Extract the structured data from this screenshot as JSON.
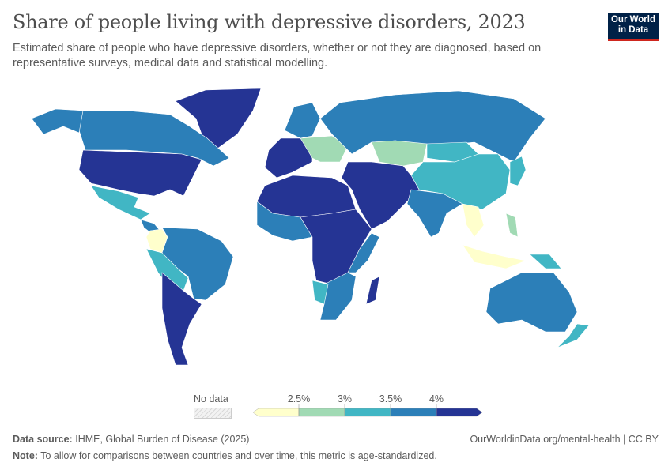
{
  "header": {
    "title": "Share of people living with depressive disorders, 2023",
    "subtitle": "Estimated share of people who have depressive disorders, whether or not they are diagnosed, based on representative surveys, medical data and statistical modelling.",
    "logo": "Our World in Data"
  },
  "legend": {
    "no_data_label": "No data",
    "ticks": [
      "2.5%",
      "3%",
      "3.5%",
      "4%"
    ],
    "bins": [
      {
        "max": 2.5,
        "color": "#ffffcc"
      },
      {
        "min": 2.5,
        "max": 3,
        "color": "#a1dab4"
      },
      {
        "min": 3,
        "max": 3.5,
        "color": "#41b6c4"
      },
      {
        "min": 3.5,
        "max": 4,
        "color": "#2c7fb8"
      },
      {
        "min": 4,
        "color": "#253494"
      }
    ],
    "no_data_color": "#e0e0e0"
  },
  "map": {
    "regions": [
      {
        "name": "greenland",
        "bin": 4
      },
      {
        "name": "canada",
        "bin": 3
      },
      {
        "name": "alaska",
        "bin": 3
      },
      {
        "name": "united-states",
        "bin": 4
      },
      {
        "name": "mexico",
        "bin": 2
      },
      {
        "name": "central-america",
        "bin": 3
      },
      {
        "name": "colombia",
        "bin": 0
      },
      {
        "name": "south-america",
        "bin": 3
      },
      {
        "name": "peru-bolivia",
        "bin": 2
      },
      {
        "name": "argentina-chile",
        "bin": 4
      },
      {
        "name": "western-europe",
        "bin": 4
      },
      {
        "name": "eastern-europe",
        "bin": 1
      },
      {
        "name": "scandinavia",
        "bin": 3
      },
      {
        "name": "russia",
        "bin": 3
      },
      {
        "name": "kazakhstan",
        "bin": 1
      },
      {
        "name": "china",
        "bin": 2
      },
      {
        "name": "mongolia",
        "bin": 2
      },
      {
        "name": "middle-east",
        "bin": 4
      },
      {
        "name": "north-africa",
        "bin": 4
      },
      {
        "name": "west-africa",
        "bin": 3
      },
      {
        "name": "central-africa",
        "bin": 4
      },
      {
        "name": "east-africa",
        "bin": 3
      },
      {
        "name": "southern-africa",
        "bin": 3
      },
      {
        "name": "namibia",
        "bin": 2
      },
      {
        "name": "madagascar",
        "bin": 4
      },
      {
        "name": "india",
        "bin": 3
      },
      {
        "name": "southeast-asia",
        "bin": 0
      },
      {
        "name": "indonesia",
        "bin": 0
      },
      {
        "name": "papua",
        "bin": 2
      },
      {
        "name": "philippines",
        "bin": 1
      },
      {
        "name": "japan",
        "bin": 2
      },
      {
        "name": "australia",
        "bin": 3
      },
      {
        "name": "new-zealand",
        "bin": 2
      }
    ]
  },
  "footer": {
    "source_label": "Data source:",
    "source": "IHME, Global Burden of Disease (2025)",
    "url": "OurWorldinData.org/mental-health | CC BY",
    "note_label": "Note:",
    "note": "To allow for comparisons between countries and over time, this metric is age-standardized."
  }
}
